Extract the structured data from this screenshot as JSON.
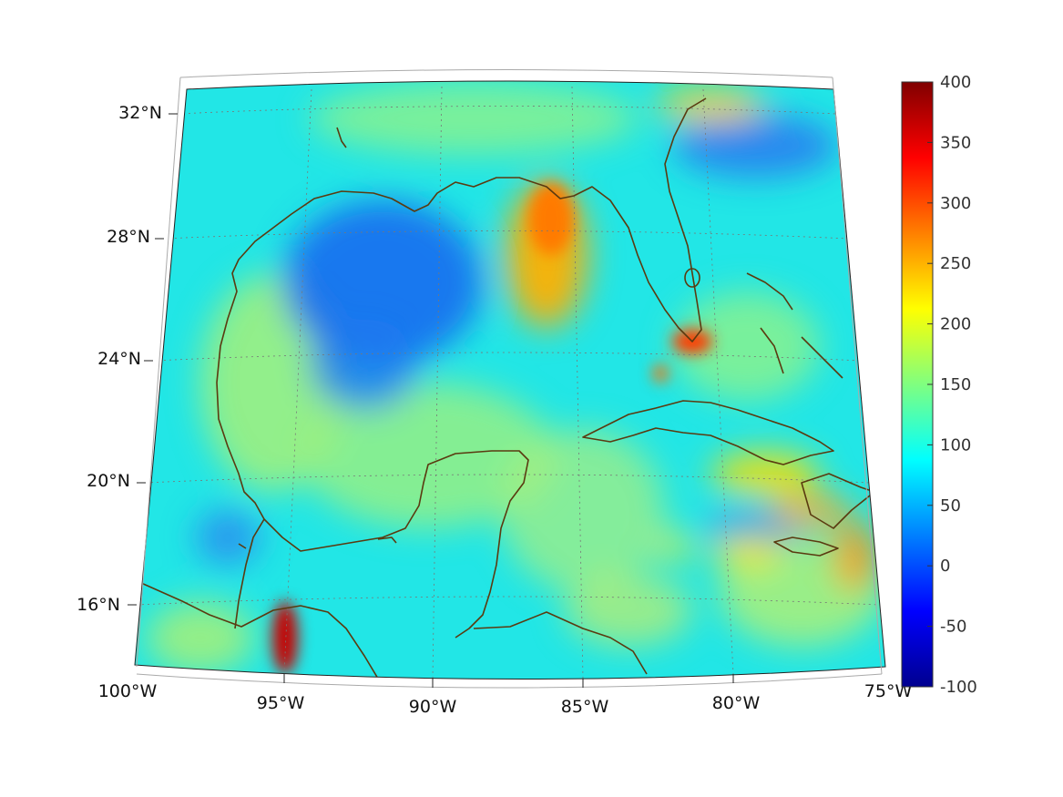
{
  "map": {
    "projection": "conic",
    "lon_range": [
      -100,
      -75
    ],
    "lat_range": [
      14,
      33
    ],
    "coastline_color": "#5a3a10",
    "grid": "dotted",
    "lat_ticks": [
      {
        "label": "32°N"
      },
      {
        "label": "28°N"
      },
      {
        "label": "24°N"
      },
      {
        "label": "20°N"
      },
      {
        "label": "16°N"
      }
    ],
    "lon_ticks": [
      {
        "label": "100°W"
      },
      {
        "label": "95°W"
      },
      {
        "label": "90°W"
      },
      {
        "label": "85°W"
      },
      {
        "label": "80°W"
      },
      {
        "label": "75°W"
      }
    ]
  },
  "colorbar": {
    "colormap": "jet",
    "range": [
      -100,
      400
    ],
    "ticks": [
      "400",
      "350",
      "300",
      "250",
      "200",
      "150",
      "100",
      "50",
      "0",
      "-50",
      "-100"
    ]
  }
}
